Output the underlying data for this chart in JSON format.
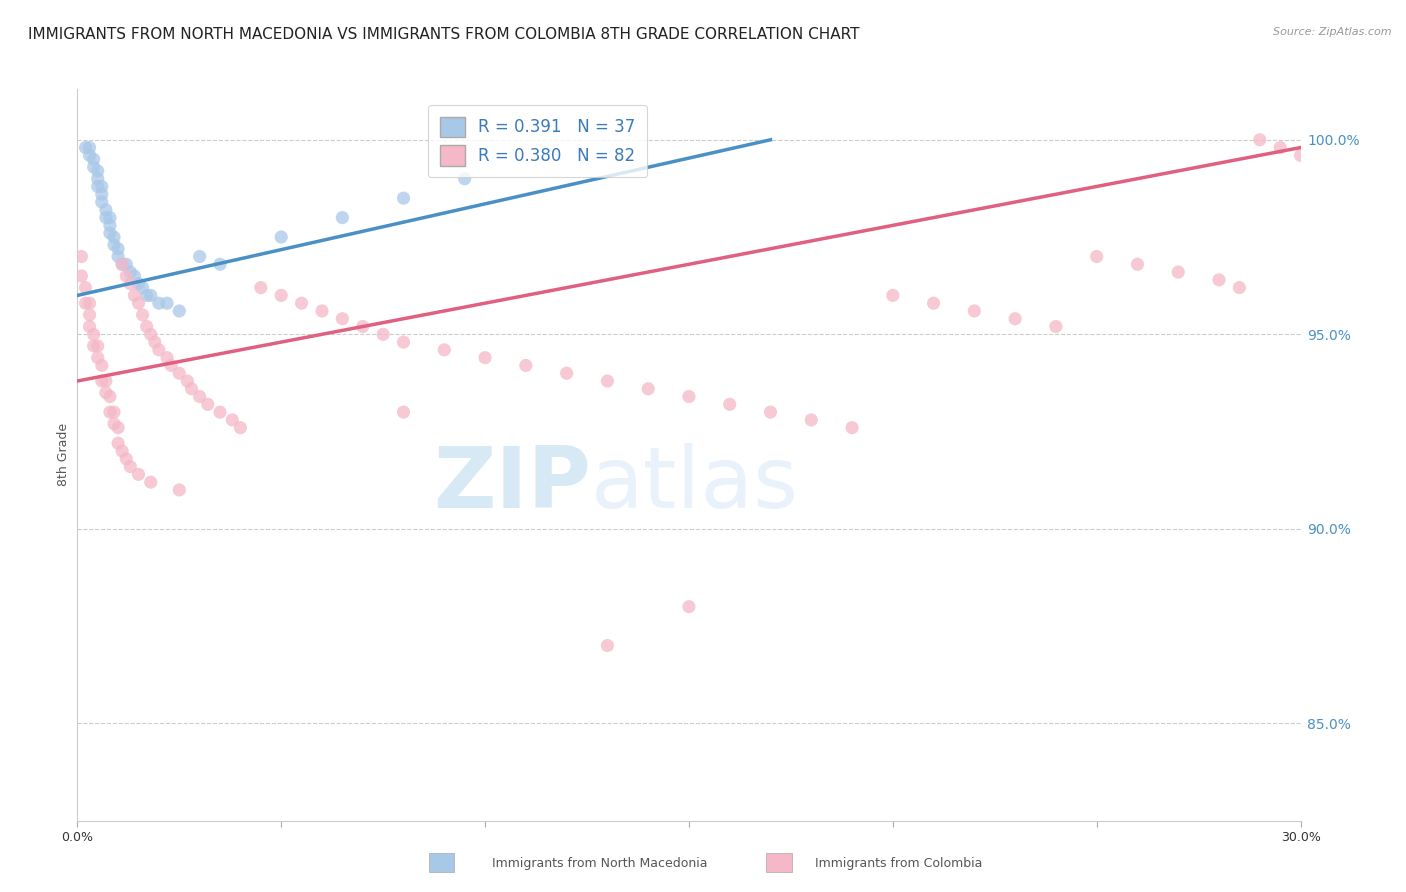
{
  "title": "IMMIGRANTS FROM NORTH MACEDONIA VS IMMIGRANTS FROM COLOMBIA 8TH GRADE CORRELATION CHART",
  "source": "Source: ZipAtlas.com",
  "ylabel": "8th Grade",
  "ytick_labels": [
    "100.0%",
    "95.0%",
    "90.0%",
    "85.0%"
  ],
  "ytick_values": [
    1.0,
    0.95,
    0.9,
    0.85
  ],
  "xlim": [
    0.0,
    0.3
  ],
  "ylim": [
    0.825,
    1.013
  ],
  "legend_entries": [
    {
      "label": "R = 0.391   N = 37",
      "color": "#a8c8e8"
    },
    {
      "label": "R = 0.380   N = 82",
      "color": "#f4b8c8"
    }
  ],
  "watermark_zip": "ZIP",
  "watermark_atlas": "atlas",
  "blue_scatter_x": [
    0.002,
    0.003,
    0.003,
    0.004,
    0.004,
    0.005,
    0.005,
    0.005,
    0.006,
    0.006,
    0.006,
    0.007,
    0.007,
    0.008,
    0.008,
    0.008,
    0.009,
    0.009,
    0.01,
    0.01,
    0.011,
    0.012,
    0.013,
    0.014,
    0.015,
    0.016,
    0.017,
    0.018,
    0.02,
    0.022,
    0.025,
    0.03,
    0.035,
    0.05,
    0.065,
    0.08,
    0.095
  ],
  "blue_scatter_y": [
    0.998,
    0.998,
    0.996,
    0.995,
    0.993,
    0.992,
    0.99,
    0.988,
    0.988,
    0.986,
    0.984,
    0.982,
    0.98,
    0.98,
    0.978,
    0.976,
    0.975,
    0.973,
    0.972,
    0.97,
    0.968,
    0.968,
    0.966,
    0.965,
    0.963,
    0.962,
    0.96,
    0.96,
    0.958,
    0.958,
    0.956,
    0.97,
    0.968,
    0.975,
    0.98,
    0.985,
    0.99
  ],
  "pink_scatter_x": [
    0.001,
    0.001,
    0.002,
    0.002,
    0.003,
    0.003,
    0.003,
    0.004,
    0.004,
    0.005,
    0.005,
    0.006,
    0.006,
    0.007,
    0.007,
    0.008,
    0.008,
    0.009,
    0.009,
    0.01,
    0.01,
    0.011,
    0.011,
    0.012,
    0.012,
    0.013,
    0.013,
    0.014,
    0.015,
    0.015,
    0.016,
    0.017,
    0.018,
    0.018,
    0.019,
    0.02,
    0.022,
    0.023,
    0.025,
    0.025,
    0.027,
    0.028,
    0.03,
    0.032,
    0.035,
    0.038,
    0.04,
    0.045,
    0.05,
    0.055,
    0.06,
    0.065,
    0.07,
    0.075,
    0.08,
    0.09,
    0.1,
    0.11,
    0.12,
    0.13,
    0.14,
    0.15,
    0.16,
    0.17,
    0.18,
    0.19,
    0.2,
    0.21,
    0.22,
    0.23,
    0.24,
    0.25,
    0.26,
    0.27,
    0.28,
    0.285,
    0.29,
    0.295,
    0.3,
    0.15,
    0.13,
    0.08
  ],
  "pink_scatter_y": [
    0.97,
    0.965,
    0.962,
    0.958,
    0.958,
    0.955,
    0.952,
    0.95,
    0.947,
    0.947,
    0.944,
    0.942,
    0.938,
    0.938,
    0.935,
    0.934,
    0.93,
    0.93,
    0.927,
    0.926,
    0.922,
    0.968,
    0.92,
    0.965,
    0.918,
    0.963,
    0.916,
    0.96,
    0.958,
    0.914,
    0.955,
    0.952,
    0.95,
    0.912,
    0.948,
    0.946,
    0.944,
    0.942,
    0.94,
    0.91,
    0.938,
    0.936,
    0.934,
    0.932,
    0.93,
    0.928,
    0.926,
    0.962,
    0.96,
    0.958,
    0.956,
    0.954,
    0.952,
    0.95,
    0.948,
    0.946,
    0.944,
    0.942,
    0.94,
    0.938,
    0.936,
    0.934,
    0.932,
    0.93,
    0.928,
    0.926,
    0.96,
    0.958,
    0.956,
    0.954,
    0.952,
    0.97,
    0.968,
    0.966,
    0.964,
    0.962,
    1.0,
    0.998,
    0.996,
    0.88,
    0.87,
    0.93
  ],
  "blue_line_x": [
    0.0,
    0.17
  ],
  "blue_line_y": [
    0.96,
    1.0
  ],
  "pink_line_x": [
    0.0,
    0.3
  ],
  "pink_line_y": [
    0.938,
    0.998
  ],
  "blue_color": "#a8c8e8",
  "pink_color": "#f4b8c8",
  "blue_line_color": "#4a90c4",
  "pink_line_color": "#e06080",
  "background_color": "#ffffff",
  "grid_color": "#cccccc",
  "title_fontsize": 11,
  "axis_fontsize": 9,
  "legend_fontsize": 12
}
